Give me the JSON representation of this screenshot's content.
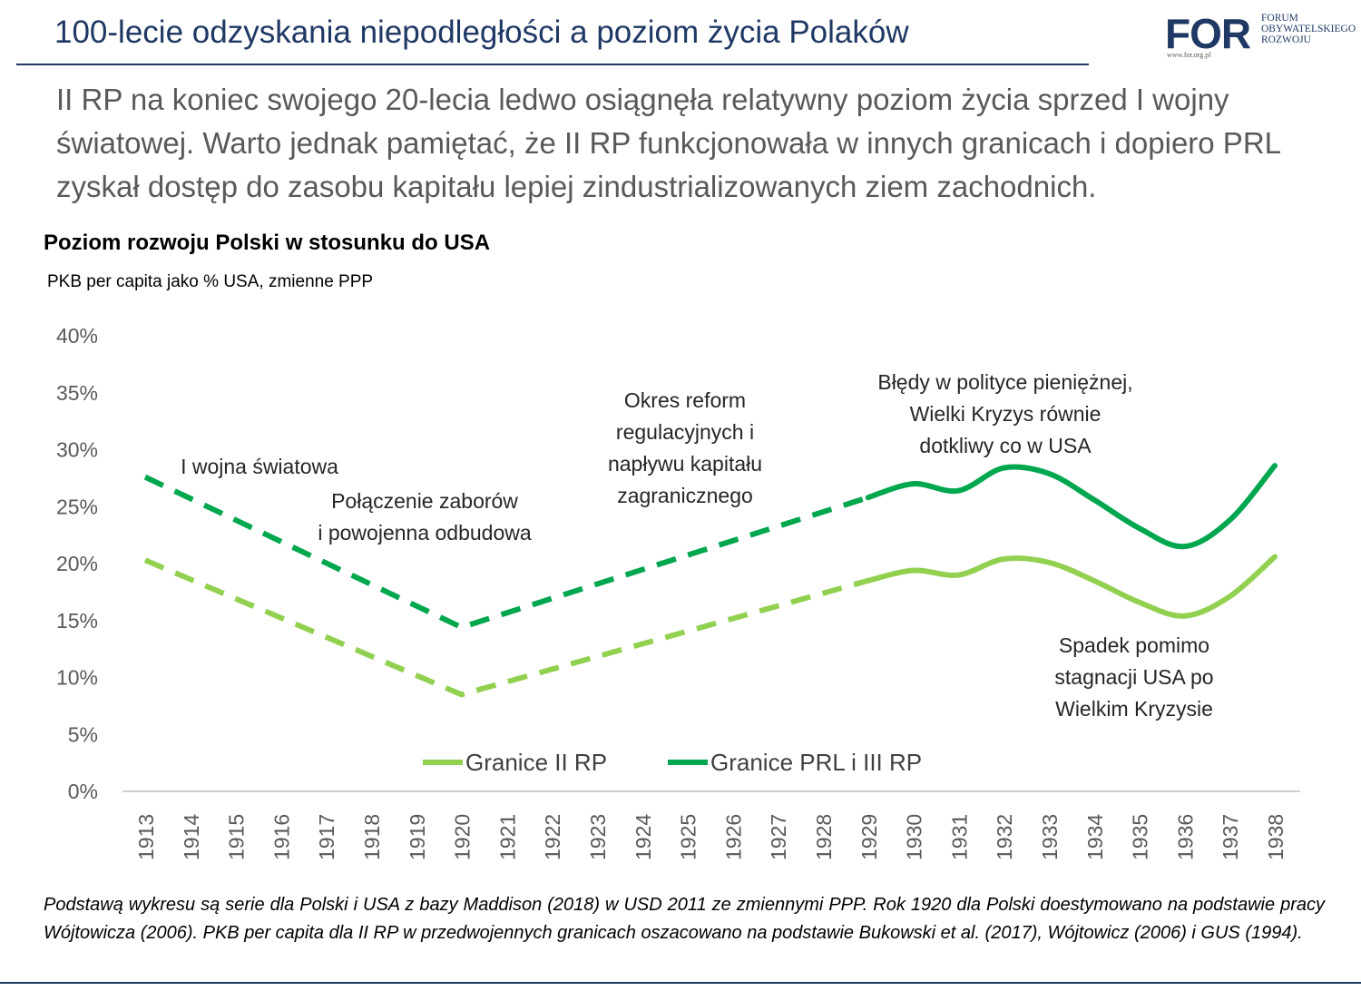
{
  "header": {
    "title": "100-lecie odzyskania niepodległości a poziom życia Polaków",
    "logo_text": "FOR",
    "logo_lines": [
      "FORUM",
      "OBYWATELSKIEGO",
      "ROZWOJU"
    ],
    "logo_url": "www.for.org.pl"
  },
  "subtitle": "II RP na koniec swojego 20-lecia ledwo osiągnęła relatywny poziom życia sprzed I wojny światowej. Warto jednak pamiętać, że II RP funkcjonowała w innych granicach i dopiero PRL zyskał dostęp do zasobu kapitału lepiej zindustrializowanych ziem zachodnich.",
  "chart_data": {
    "type": "line",
    "title": "Poziom rozwoju Polski w stosunku do USA",
    "subtitle": "PKB per capita jako % USA, zmienne PPP",
    "xlabel": "",
    "ylabel": "",
    "ylim": [
      0,
      40
    ],
    "yticks": [
      0,
      5,
      10,
      15,
      20,
      25,
      30,
      35,
      40
    ],
    "ytick_labels": [
      "0%",
      "5%",
      "10%",
      "15%",
      "20%",
      "25%",
      "30%",
      "35%",
      "40%"
    ],
    "categories": [
      "1913",
      "1914",
      "1915",
      "1916",
      "1917",
      "1918",
      "1919",
      "1920",
      "1921",
      "1922",
      "1923",
      "1924",
      "1925",
      "1926",
      "1927",
      "1928",
      "1929",
      "1930",
      "1931",
      "1932",
      "1933",
      "1934",
      "1935",
      "1936",
      "1937",
      "1938"
    ],
    "legend_position": "bottom-center",
    "grid": false,
    "series": [
      {
        "name": "Granice II RP",
        "color": "#92d050",
        "values": [
          20.3,
          null,
          null,
          null,
          null,
          null,
          null,
          8.5,
          null,
          null,
          null,
          null,
          null,
          null,
          null,
          null,
          18.5,
          19.4,
          19.0,
          20.4,
          20.1,
          18.5,
          16.6,
          15.4,
          17.1,
          20.6
        ],
        "dashed_until": "1929"
      },
      {
        "name": "Granice PRL i III RP",
        "color": "#00a74f",
        "values": [
          27.6,
          null,
          null,
          null,
          null,
          null,
          null,
          14.4,
          null,
          null,
          null,
          null,
          null,
          null,
          null,
          null,
          25.8,
          27.0,
          26.4,
          28.4,
          27.9,
          25.6,
          23.1,
          21.5,
          23.8,
          28.6
        ],
        "dashed_until": "1929"
      }
    ],
    "annotations": [
      {
        "id": "ww1",
        "lines": [
          "I wojna światowa"
        ]
      },
      {
        "id": "polaczenie",
        "lines": [
          "Połączenie zaborów",
          "i powojenna odbudowa"
        ]
      },
      {
        "id": "reformy",
        "lines": [
          "Okres reform",
          "regulacyjnych i",
          "napływu kapitału",
          "zagranicznego"
        ]
      },
      {
        "id": "bledy",
        "lines": [
          "Błędy w polityce pieniężnej,",
          "Wielki Kryzys równie",
          "dotkliwy co w USA"
        ]
      },
      {
        "id": "spadek",
        "lines": [
          "Spadek pomimo",
          "stagnacji USA po",
          "Wielkim Kryzysie"
        ]
      }
    ]
  },
  "footnote": "Podstawą wykresu są serie dla Polski i USA z bazy Maddison (2018) w USD 2011 ze zmiennymi PPP. Rok 1920 dla Polski doestymowano na podstawie pracy Wójtowicza (2006). PKB per capita dla II RP w przedwojennych granicach oszacowano na podstawie Bukowski et al. (2017), Wójtowicz (2006) i GUS (1994)."
}
